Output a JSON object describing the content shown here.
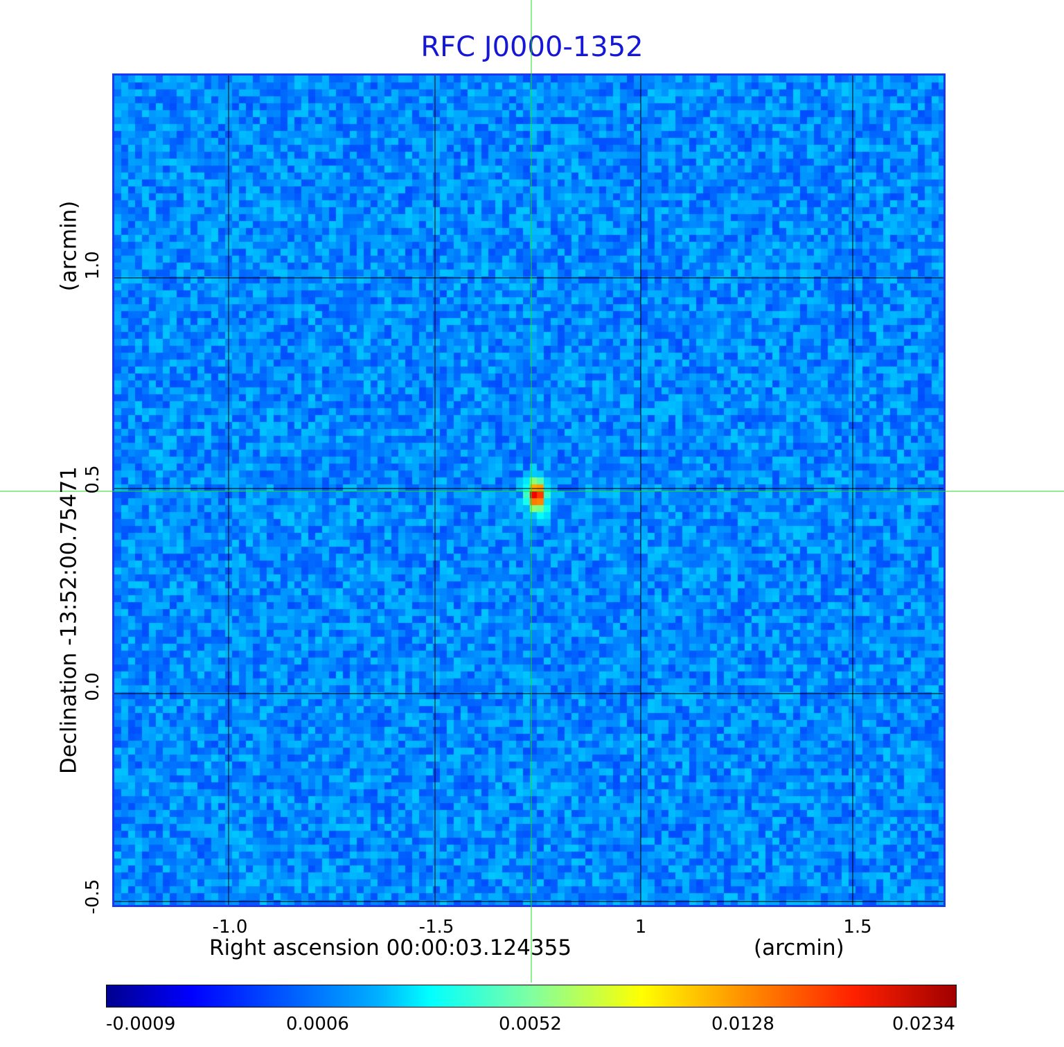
{
  "title": "RFC J0000-1352",
  "x_axis": {
    "label": "Right ascension  00:00:03.124355",
    "unit": "(arcmin)",
    "ticks": [
      "-1.0",
      "-1.5",
      "1",
      "1.5"
    ]
  },
  "y_axis": {
    "label": "Declination  -13:52:00.75471",
    "unit": "(arcmin)",
    "ticks": [
      "1.0",
      "0.5",
      "0.0",
      "-0.5"
    ]
  },
  "colorbar": {
    "colormap": "jet",
    "ticks": [
      "-0.0009",
      "0.0006",
      "0.0052",
      "0.0128",
      "0.0234"
    ]
  },
  "image": {
    "colormap": "jet",
    "background_level": 0.0003,
    "peak_value": 0.0234,
    "source": "compact peak at crosshair center"
  },
  "colors": {
    "title": "#1616d6",
    "crosshair": "#22dd22",
    "grid": "#000000",
    "frame": "#1a3af0"
  }
}
